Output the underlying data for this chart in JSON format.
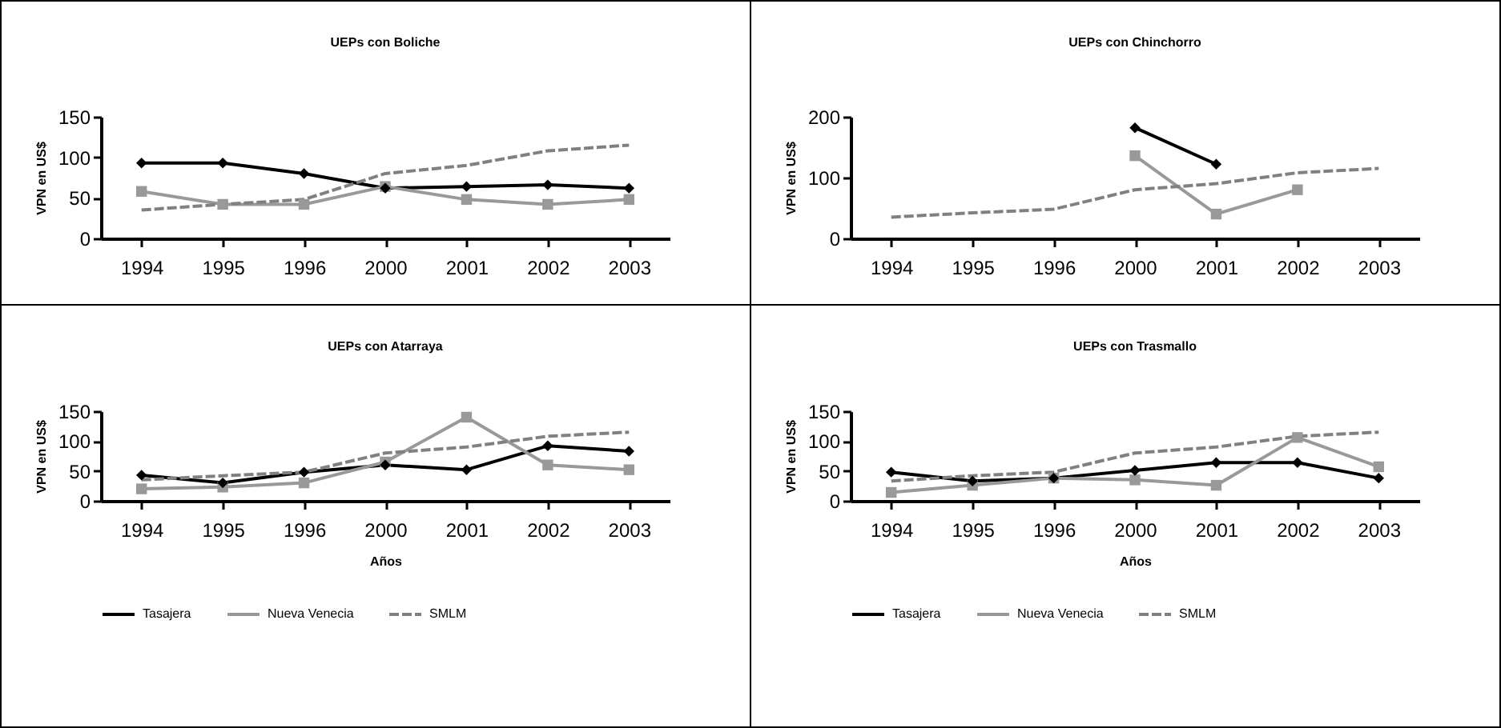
{
  "chart_data": [
    {
      "type": "line",
      "title": "UEPs con Boliche",
      "ylabel": "VPN en US$",
      "categories": [
        "1994",
        "1995",
        "1996",
        "2000",
        "2001",
        "2002",
        "2003"
      ],
      "ylim": [
        0,
        150
      ],
      "yticks": [
        0,
        50,
        100,
        150
      ],
      "series": [
        {
          "color": "#000000",
          "marker": "diamond",
          "line_style": "solid",
          "values": [
            93,
            93,
            80,
            62,
            64,
            66,
            62
          ]
        },
        {
          "color": "#999999",
          "marker": "square",
          "line_style": "solid",
          "values": [
            58,
            42,
            42,
            64,
            48,
            42,
            48
          ]
        },
        {
          "color": "#808080",
          "marker": "none",
          "line_style": "dashed",
          "values": [
            35,
            42,
            48,
            80,
            90,
            108,
            115
          ]
        }
      ]
    },
    {
      "type": "line",
      "title": "UEPs con Chinchorro",
      "ylabel": "VPN en US$",
      "categories": [
        "1994",
        "1995",
        "1996",
        "2000",
        "2001",
        "2002",
        "2003"
      ],
      "ylim": [
        0,
        200
      ],
      "yticks": [
        0,
        100,
        200
      ],
      "series": [
        {
          "color": "#000000",
          "marker": "diamond",
          "line_style": "solid",
          "values": [
            null,
            null,
            null,
            182,
            122,
            null,
            null
          ]
        },
        {
          "color": "#999999",
          "marker": "square",
          "line_style": "solid",
          "values": [
            null,
            null,
            null,
            136,
            40,
            80,
            null
          ]
        },
        {
          "color": "#808080",
          "marker": "none",
          "line_style": "dashed",
          "values": [
            35,
            42,
            48,
            80,
            90,
            108,
            115
          ]
        }
      ]
    },
    {
      "type": "line",
      "title": "UEPs con Atarraya",
      "ylabel": "VPN en US$",
      "xlabel": "Años",
      "categories": [
        "1994",
        "1995",
        "1996",
        "2000",
        "2001",
        "2002",
        "2003"
      ],
      "ylim": [
        0,
        150
      ],
      "yticks": [
        0,
        50,
        100,
        150
      ],
      "legend": "bottom",
      "series": [
        {
          "name": "Tasajera",
          "color": "#000000",
          "marker": "diamond",
          "line_style": "solid",
          "values": [
            43,
            30,
            48,
            60,
            52,
            92,
            83
          ]
        },
        {
          "name": "Nueva Venecia",
          "color": "#999999",
          "marker": "square",
          "line_style": "solid",
          "values": [
            20,
            23,
            30,
            65,
            140,
            60,
            52
          ]
        },
        {
          "name": "SMLM",
          "color": "#808080",
          "marker": "none",
          "line_style": "dashed",
          "values": [
            35,
            42,
            48,
            80,
            90,
            108,
            115
          ]
        }
      ]
    },
    {
      "type": "line",
      "title": "UEPs con Trasmallo",
      "ylabel": "VPN en US$",
      "xlabel": "Años",
      "categories": [
        "1994",
        "1995",
        "1996",
        "2000",
        "2001",
        "2002",
        "2003"
      ],
      "ylim": [
        0,
        150
      ],
      "yticks": [
        0,
        50,
        100,
        150
      ],
      "legend": "bottom",
      "series": [
        {
          "name": "Tasajera",
          "color": "#000000",
          "marker": "diamond",
          "line_style": "solid",
          "values": [
            48,
            33,
            38,
            51,
            64,
            64,
            38
          ]
        },
        {
          "name": "Nueva Venecia",
          "color": "#999999",
          "marker": "square",
          "line_style": "solid",
          "values": [
            14,
            26,
            38,
            35,
            26,
            106,
            57
          ]
        },
        {
          "name": "SMLM",
          "color": "#808080",
          "marker": "none",
          "line_style": "dashed",
          "values": [
            33,
            42,
            48,
            80,
            90,
            108,
            115
          ]
        }
      ]
    }
  ]
}
